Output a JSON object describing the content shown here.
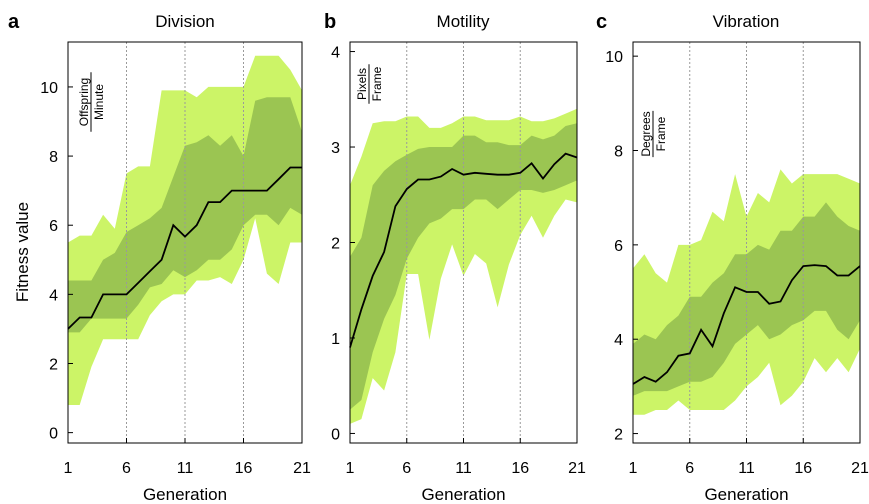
{
  "figure": {
    "ylabel": "Fitness value",
    "colors": {
      "outer_band": "#ccf467",
      "inner_band": "#9bc552",
      "median_line": "#000000",
      "gridline": "#9a9a9a"
    }
  },
  "chart_data": [
    {
      "letter": "a",
      "title": "Division",
      "type": "area",
      "xlabel": "Generation",
      "unit_numerator": "Offspring",
      "unit_denominator": "Minute",
      "xlim": [
        1,
        21
      ],
      "ylim": [
        -0.3,
        11.3
      ],
      "xticks": [
        1,
        6,
        11,
        16,
        21
      ],
      "yticks": [
        0,
        2,
        4,
        6,
        8,
        10
      ],
      "vgrid": [
        6,
        11,
        16
      ],
      "x": [
        1,
        2,
        3,
        4,
        5,
        6,
        7,
        8,
        9,
        10,
        11,
        12,
        13,
        14,
        15,
        16,
        17,
        18,
        19,
        20,
        21
      ],
      "series": [
        {
          "role": "max",
          "values": [
            5.5,
            5.7,
            5.7,
            6.3,
            5.9,
            7.5,
            7.7,
            7.7,
            9.9,
            9.9,
            9.9,
            9.7,
            10.0,
            10.0,
            10.0,
            10.0,
            10.9,
            10.9,
            10.9,
            10.5,
            9.9
          ]
        },
        {
          "role": "upper_quartile",
          "values": [
            4.4,
            4.4,
            4.4,
            5.0,
            5.2,
            5.8,
            6.0,
            6.2,
            6.5,
            7.4,
            8.3,
            8.4,
            8.6,
            8.3,
            8.6,
            8.0,
            9.6,
            9.7,
            9.7,
            9.7,
            8.7
          ]
        },
        {
          "role": "median",
          "values": [
            3.0,
            3.33,
            3.33,
            4.0,
            4.0,
            4.0,
            4.33,
            4.67,
            5.0,
            6.0,
            5.67,
            6.0,
            6.67,
            6.67,
            7.0,
            7.0,
            7.0,
            7.0,
            7.33,
            7.67,
            7.67
          ]
        },
        {
          "role": "lower_quartile",
          "values": [
            2.9,
            2.9,
            3.3,
            3.3,
            3.3,
            3.3,
            3.7,
            4.2,
            4.3,
            4.7,
            4.5,
            4.7,
            5.0,
            5.0,
            5.3,
            6.0,
            6.3,
            6.3,
            6.0,
            6.5,
            6.3
          ]
        },
        {
          "role": "min",
          "values": [
            0.8,
            0.8,
            1.9,
            2.7,
            2.7,
            2.7,
            2.7,
            3.4,
            3.8,
            4.0,
            4.0,
            4.4,
            4.4,
            4.5,
            4.3,
            5.0,
            6.2,
            4.6,
            4.3,
            5.5,
            5.5
          ]
        }
      ]
    },
    {
      "letter": "b",
      "title": "Motility",
      "type": "area",
      "xlabel": "Generation",
      "unit_numerator": "Pixels",
      "unit_denominator": "Frame",
      "xlim": [
        1,
        21
      ],
      "ylim": [
        -0.1,
        4.1
      ],
      "xticks": [
        1,
        6,
        11,
        16,
        21
      ],
      "yticks": [
        0,
        1,
        2,
        3,
        4
      ],
      "vgrid": [
        6,
        11,
        16
      ],
      "x": [
        1,
        2,
        3,
        4,
        5,
        6,
        7,
        8,
        9,
        10,
        11,
        12,
        13,
        14,
        15,
        16,
        17,
        18,
        19,
        20,
        21
      ],
      "series": [
        {
          "role": "max",
          "values": [
            2.6,
            2.9,
            3.25,
            3.27,
            3.27,
            3.32,
            3.32,
            3.2,
            3.2,
            3.25,
            3.32,
            3.32,
            3.28,
            3.28,
            3.28,
            3.32,
            3.27,
            3.27,
            3.3,
            3.35,
            3.4
          ]
        },
        {
          "role": "upper_quartile",
          "values": [
            1.85,
            2.05,
            2.6,
            2.75,
            2.85,
            2.92,
            2.98,
            3.0,
            3.0,
            3.0,
            3.12,
            3.12,
            3.05,
            3.05,
            3.02,
            3.02,
            3.12,
            3.08,
            3.12,
            3.22,
            3.25
          ]
        },
        {
          "role": "median",
          "values": [
            0.9,
            1.3,
            1.65,
            1.9,
            2.38,
            2.56,
            2.66,
            2.66,
            2.69,
            2.77,
            2.71,
            2.73,
            2.72,
            2.71,
            2.71,
            2.73,
            2.83,
            2.67,
            2.82,
            2.93,
            2.89
          ]
        },
        {
          "role": "lower_quartile",
          "values": [
            0.25,
            0.35,
            0.85,
            1.2,
            1.45,
            1.83,
            2.05,
            2.2,
            2.25,
            2.35,
            2.35,
            2.45,
            2.45,
            2.35,
            2.45,
            2.55,
            2.55,
            2.52,
            2.55,
            2.6,
            2.65
          ]
        },
        {
          "role": "min",
          "values": [
            0.1,
            0.15,
            0.58,
            0.45,
            0.85,
            1.67,
            1.67,
            0.98,
            1.62,
            1.98,
            1.65,
            1.88,
            1.78,
            1.32,
            1.77,
            2.08,
            2.28,
            2.05,
            2.28,
            2.45,
            2.42
          ]
        }
      ]
    },
    {
      "letter": "c",
      "title": "Vibration",
      "type": "area",
      "xlabel": "Generation",
      "unit_numerator": "Degrees",
      "unit_denominator": "Frame",
      "xlim": [
        1,
        21
      ],
      "ylim": [
        1.8,
        10.3
      ],
      "xticks": [
        1,
        6,
        11,
        16,
        21
      ],
      "yticks": [
        2,
        4,
        6,
        8,
        10
      ],
      "vgrid": [
        6,
        11,
        16
      ],
      "x": [
        1,
        2,
        3,
        4,
        5,
        6,
        7,
        8,
        9,
        10,
        11,
        12,
        13,
        14,
        15,
        16,
        17,
        18,
        19,
        20,
        21
      ],
      "series": [
        {
          "role": "max",
          "values": [
            5.5,
            5.8,
            5.4,
            5.2,
            6.0,
            6.0,
            6.1,
            6.7,
            6.5,
            7.5,
            6.6,
            7.1,
            6.9,
            7.6,
            7.3,
            7.5,
            7.5,
            7.5,
            7.5,
            7.4,
            7.3
          ]
        },
        {
          "role": "upper_quartile",
          "values": [
            3.9,
            4.1,
            4.0,
            4.3,
            4.5,
            4.9,
            4.9,
            5.2,
            5.4,
            5.8,
            5.8,
            6.0,
            5.9,
            6.3,
            6.3,
            6.6,
            6.6,
            6.9,
            6.6,
            6.4,
            6.3
          ]
        },
        {
          "role": "median",
          "values": [
            3.05,
            3.2,
            3.1,
            3.3,
            3.65,
            3.7,
            4.2,
            3.85,
            4.55,
            5.1,
            5.0,
            5.0,
            4.75,
            4.8,
            5.25,
            5.55,
            5.57,
            5.55,
            5.35,
            5.35,
            5.55
          ]
        },
        {
          "role": "lower_quartile",
          "values": [
            2.8,
            2.9,
            2.9,
            2.9,
            3.0,
            3.1,
            3.1,
            3.2,
            3.5,
            3.9,
            4.1,
            4.3,
            4.0,
            4.1,
            4.3,
            4.4,
            4.6,
            4.6,
            4.2,
            4.0,
            4.4
          ]
        },
        {
          "role": "min",
          "values": [
            2.4,
            2.4,
            2.5,
            2.5,
            2.7,
            2.5,
            2.5,
            2.5,
            2.5,
            2.7,
            3.0,
            3.2,
            3.5,
            2.6,
            2.8,
            3.1,
            3.6,
            3.3,
            3.6,
            3.3,
            3.8
          ]
        }
      ]
    }
  ]
}
